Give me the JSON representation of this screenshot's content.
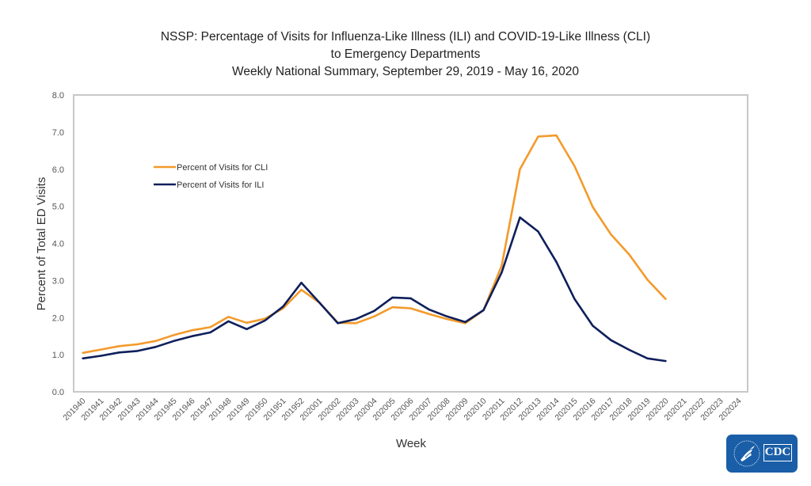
{
  "chart_data": {
    "type": "line",
    "title": [
      "NSSP: Percentage of Visits for Influenza-Like Illness (ILI) and COVID-19-Like Illness (CLI)",
      "to Emergency Departments",
      "Weekly National Summary, September 29, 2019 - May 16, 2020"
    ],
    "xlabel": "Week",
    "ylabel": "Percent of Total ED Visits",
    "ylim": [
      0,
      8
    ],
    "yticks": [
      "0.0",
      "1.0",
      "2.0",
      "3.0",
      "4.0",
      "5.0",
      "6.0",
      "7.0",
      "8.0"
    ],
    "grid": false,
    "legend_position": "upper-left inside plot",
    "categories": [
      "201940",
      "201941",
      "201942",
      "201943",
      "201944",
      "201945",
      "201946",
      "201947",
      "201948",
      "201949",
      "201950",
      "201951",
      "201952",
      "202001",
      "202002",
      "202003",
      "202004",
      "202005",
      "202006",
      "202007",
      "202008",
      "202009",
      "202010",
      "202011",
      "202012",
      "202013",
      "202014",
      "202015",
      "202016",
      "202017",
      "202018",
      "202019",
      "202020",
      "202021",
      "202022",
      "202023",
      "202024"
    ],
    "series": [
      {
        "name": "Percent of Visits for CLI",
        "color": "#f39a2b",
        "values": [
          1.05,
          1.14,
          1.23,
          1.28,
          1.37,
          1.53,
          1.66,
          1.74,
          2.02,
          1.86,
          1.97,
          2.25,
          2.75,
          2.4,
          1.86,
          1.85,
          2.03,
          2.28,
          2.25,
          2.1,
          1.96,
          1.85,
          2.2,
          3.4,
          6.0,
          6.88,
          6.91,
          6.08,
          4.98,
          4.24,
          3.7,
          3.02,
          2.5,
          null,
          null,
          null,
          null
        ]
      },
      {
        "name": "Percent of Visits for ILI",
        "color": "#0e1f5b",
        "values": [
          0.9,
          0.97,
          1.06,
          1.1,
          1.21,
          1.37,
          1.5,
          1.6,
          1.9,
          1.69,
          1.92,
          2.3,
          2.94,
          2.4,
          1.85,
          1.96,
          2.18,
          2.54,
          2.52,
          2.22,
          2.03,
          1.88,
          2.2,
          3.22,
          4.7,
          4.32,
          3.5,
          2.5,
          1.78,
          1.39,
          1.13,
          0.9,
          0.83,
          null,
          null,
          null,
          null
        ]
      }
    ]
  },
  "logo": {
    "text": "CDC"
  }
}
